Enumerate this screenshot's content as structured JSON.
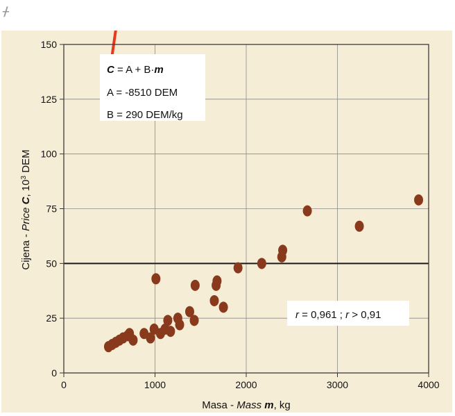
{
  "corner_mark": "ᚋ",
  "chart_data": {
    "type": "scatter",
    "title": "",
    "xlabel": "Masa - Mass m, kg",
    "xlabel_parts": {
      "prefix": "Masa - ",
      "italic": "Mass ",
      "bold": "m",
      "suffix": ", kg"
    },
    "ylabel": "Cijena - Price C, 10³ DEM",
    "ylabel_parts": {
      "prefix": "Cijena - ",
      "italic": "Price ",
      "bold": "C",
      "suffix": ", 10",
      "sup": "3",
      "unit": " DEM"
    },
    "xlim": [
      0,
      4000
    ],
    "ylim": [
      0,
      150
    ],
    "xticks": [
      0,
      1000,
      2000,
      3000,
      4000
    ],
    "yticks": [
      0,
      25,
      50,
      75,
      100,
      125,
      150
    ],
    "grid": true,
    "reference_line_y": 50,
    "regression": {
      "A": -8510,
      "B": 290,
      "x_range": [
        500,
        3920
      ]
    },
    "annotations": {
      "formula": "C = A + B·m",
      "formula_parts": {
        "lhs": "C",
        "mid": " = A + B·",
        "rhs": "m"
      },
      "a_line": "A = -8510 DEM",
      "b_line": "B = 290 DEM/kg",
      "r_text": "r = 0,961 ; r > 0,91",
      "r_parts": {
        "r1": "r",
        "t1": " = 0,961 ; ",
        "r2": "r",
        "t2": " > 0,91"
      }
    },
    "colors": {
      "points": "#8a3a1c",
      "fit_line": "#e8391f",
      "background": "#f6edd6",
      "ref_line": "#1a1a1a",
      "grid": "#8a8a8a"
    },
    "points": [
      {
        "x": 490,
        "y": 12
      },
      {
        "x": 530,
        "y": 13
      },
      {
        "x": 570,
        "y": 14
      },
      {
        "x": 610,
        "y": 15
      },
      {
        "x": 650,
        "y": 16
      },
      {
        "x": 700,
        "y": 17
      },
      {
        "x": 720,
        "y": 18
      },
      {
        "x": 760,
        "y": 15
      },
      {
        "x": 880,
        "y": 18
      },
      {
        "x": 950,
        "y": 16
      },
      {
        "x": 990,
        "y": 20
      },
      {
        "x": 1010,
        "y": 43
      },
      {
        "x": 1060,
        "y": 18
      },
      {
        "x": 1110,
        "y": 20
      },
      {
        "x": 1140,
        "y": 24
      },
      {
        "x": 1170,
        "y": 19
      },
      {
        "x": 1250,
        "y": 25
      },
      {
        "x": 1270,
        "y": 22
      },
      {
        "x": 1380,
        "y": 28
      },
      {
        "x": 1430,
        "y": 24
      },
      {
        "x": 1440,
        "y": 40
      },
      {
        "x": 1650,
        "y": 33
      },
      {
        "x": 1670,
        "y": 40
      },
      {
        "x": 1680,
        "y": 42
      },
      {
        "x": 1750,
        "y": 30
      },
      {
        "x": 1910,
        "y": 48
      },
      {
        "x": 2170,
        "y": 50
      },
      {
        "x": 2390,
        "y": 53
      },
      {
        "x": 2400,
        "y": 56
      },
      {
        "x": 2670,
        "y": 74
      },
      {
        "x": 3240,
        "y": 67
      },
      {
        "x": 3890,
        "y": 79
      }
    ]
  }
}
